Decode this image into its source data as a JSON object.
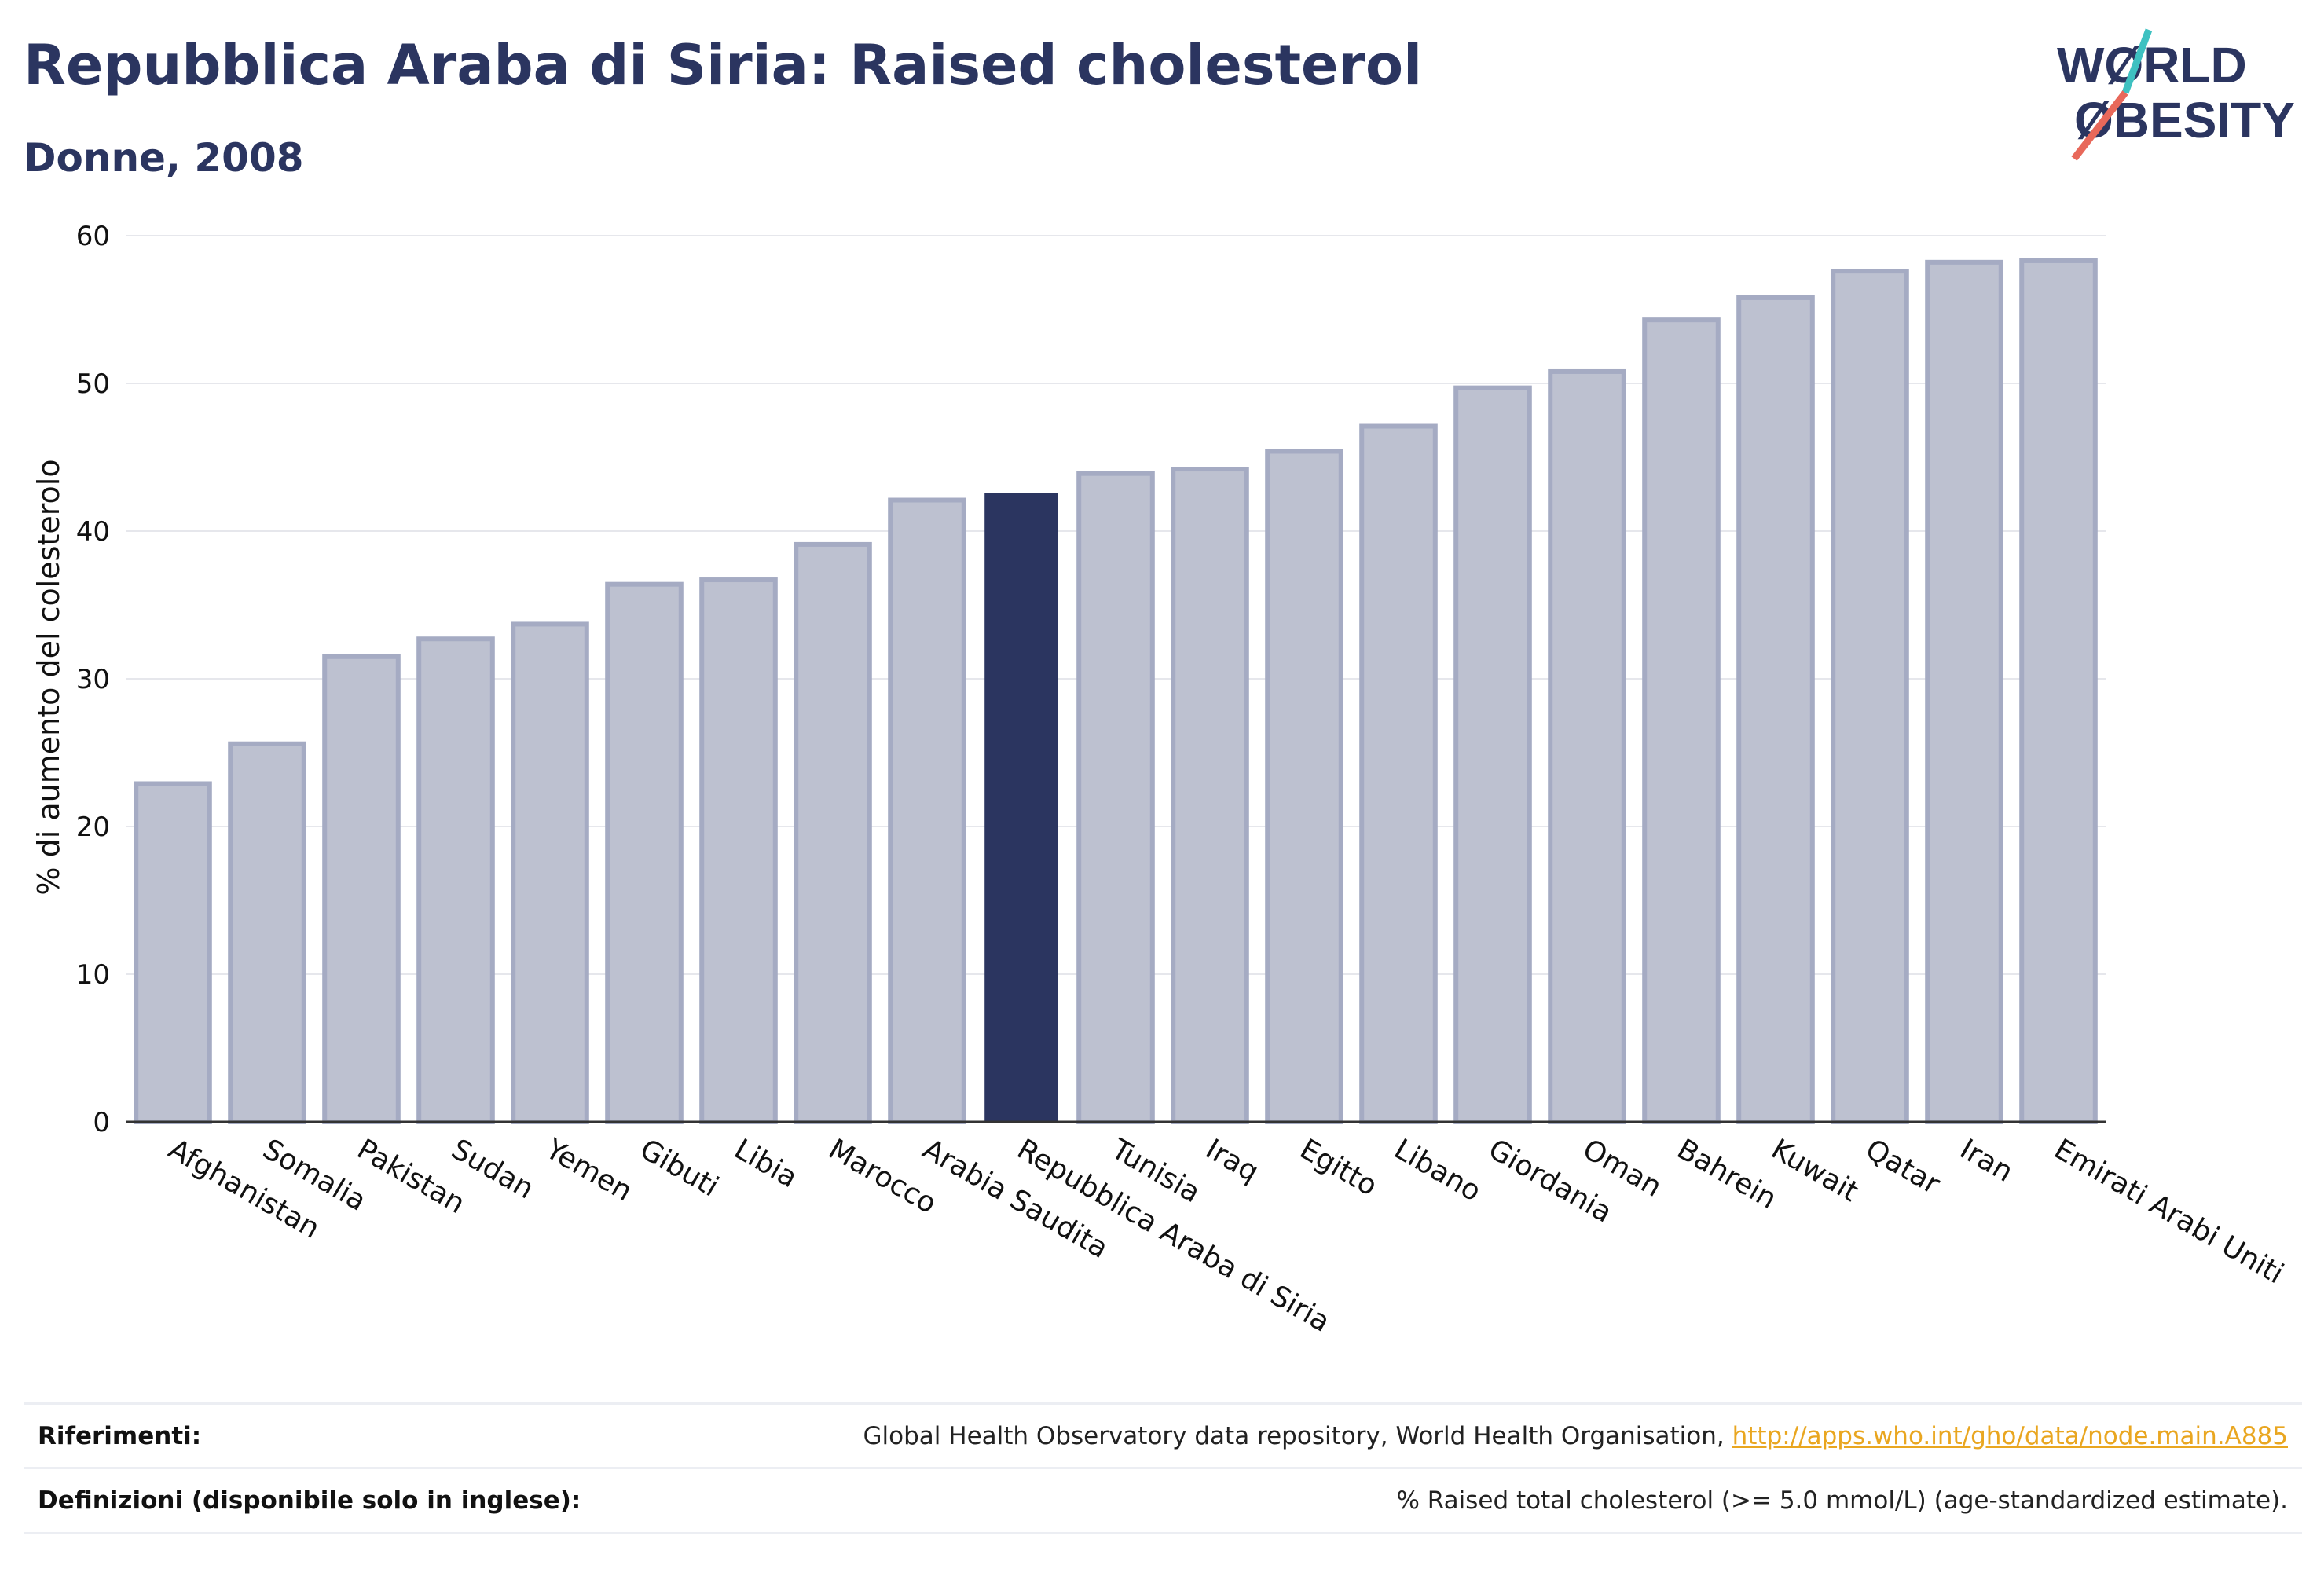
{
  "header": {
    "title": "Repubblica Araba di Siria: Raised cholesterol",
    "subtitle": "Donne, 2008"
  },
  "logo": {
    "line1": "WØRLD",
    "line2": "ØBESITY",
    "colors": {
      "text": "#2b3560",
      "accent_red": "#e8685a",
      "accent_teal": "#3ec1c1"
    }
  },
  "colors": {
    "bar": "#bdc1d0",
    "bar_border": "#a5abc3",
    "highlight": "#2b3560",
    "grid": "#e6e7ec",
    "text": "#2b3560"
  },
  "chart_data": {
    "type": "bar",
    "ylabel": "% di aumento del colesterolo",
    "xlabel": "",
    "ylim": [
      0,
      60
    ],
    "yticks": [
      0,
      10,
      20,
      30,
      40,
      50,
      60
    ],
    "grid": true,
    "highlight": "Repubblica Araba di Siria",
    "categories": [
      "Afghanistan",
      "Somalia",
      "Pakistan",
      "Sudan",
      "Yemen",
      "Gibuti",
      "Libia",
      "Marocco",
      "Arabia Saudita",
      "Repubblica Araba di Siria",
      "Tunisia",
      "Iraq",
      "Egitto",
      "Libano",
      "Giordania",
      "Oman",
      "Bahrein",
      "Kuwait",
      "Qatar",
      "Iran",
      "Emirati Arabi Uniti"
    ],
    "values": [
      22.9,
      25.6,
      31.5,
      32.7,
      33.7,
      36.4,
      36.7,
      39.1,
      42.1,
      42.6,
      43.9,
      44.2,
      45.4,
      47.1,
      49.7,
      50.8,
      54.3,
      55.8,
      57.6,
      58.2,
      58.3
    ]
  },
  "footer": {
    "references_label": "Riferimenti:",
    "references_text": "Global Health Observatory data repository, World Health Organisation, ",
    "references_link": "http://apps.who.int/gho/data/node.main.A885",
    "definitions_label": "Definizioni (disponibile solo in inglese):",
    "definitions_text": "% Raised total cholesterol (>= 5.0 mmol/L) (age-standardized estimate)."
  }
}
